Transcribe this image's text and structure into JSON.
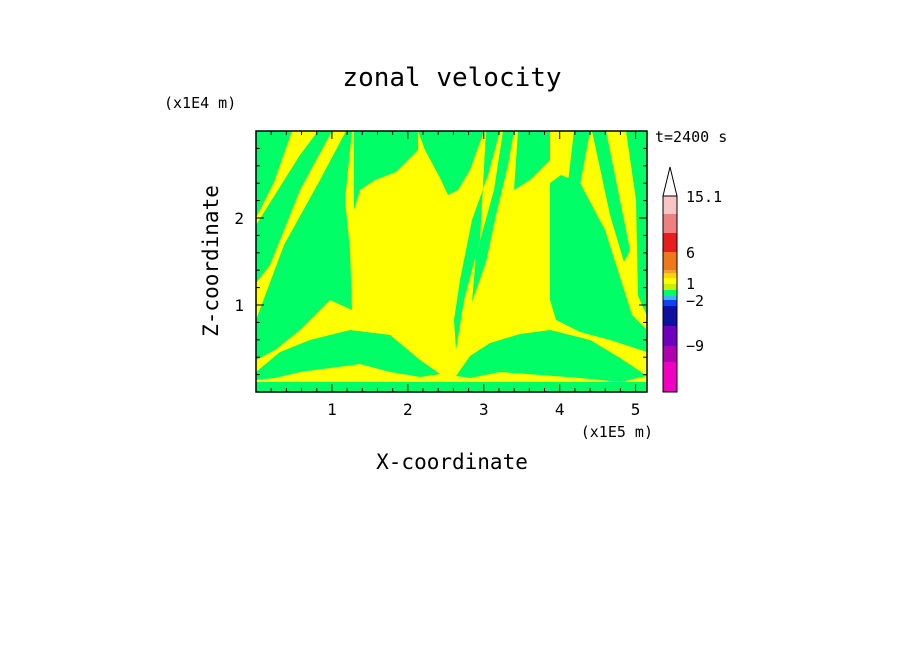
{
  "chart_data": {
    "type": "heatmap",
    "title": "zonal velocity",
    "xlabel": "X-coordinate",
    "ylabel": "Z-coordinate",
    "x_unit": "(x1E5 m)",
    "y_unit": "(x1E4 m)",
    "time_label": "t=2400 s",
    "xlim": [
      0,
      5.15
    ],
    "ylim": [
      0,
      3.0
    ],
    "x_ticks": [
      1,
      2,
      3,
      4,
      5
    ],
    "y_ticks": [
      1,
      2
    ],
    "colorbar": {
      "tick_labels": [
        "15.1",
        "6",
        "1",
        "−2",
        "−9"
      ],
      "colors_top_to_bottom": [
        "#ffffff",
        "#f9c4c4",
        "#f08080",
        "#e81e1e",
        "#f07818",
        "#f0a030",
        "#ffd400",
        "#ffff00",
        "#c8f000",
        "#00ff66",
        "#40b0ff",
        "#1040ff",
        "#1010a0",
        "#7000c0",
        "#b000b0",
        "#f000c0"
      ]
    },
    "dominant_fields": [
      {
        "name": "yellow",
        "color": "#ffff00"
      },
      {
        "name": "green",
        "color": "#00ff66"
      }
    ]
  }
}
